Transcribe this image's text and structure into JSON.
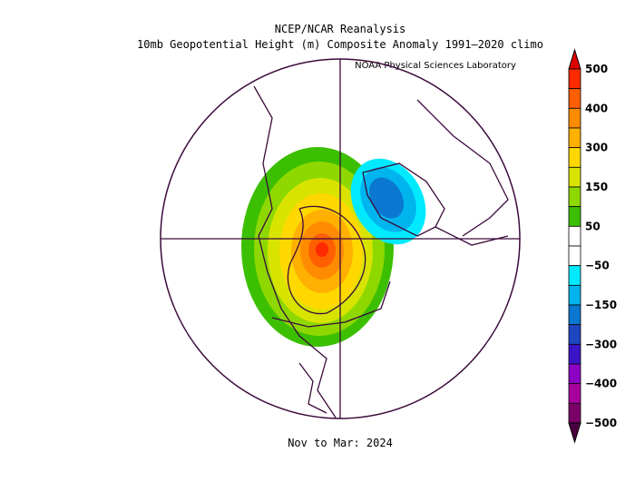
{
  "header": {
    "title": "NCEP/NCAR Reanalysis",
    "subtitle": "10mb Geopotential Height (m) Composite Anomaly 1991–2020 climo",
    "credit": "NOAA Physical Sciences Laboratory"
  },
  "footer": {
    "period": "Nov to Mar: 2024"
  },
  "colorbar": {
    "labels": [
      "500",
      "400",
      "300",
      "150",
      "50",
      "−50",
      "−150",
      "−300",
      "−400",
      "−500"
    ],
    "top_color": "#e00000",
    "bottom_color": "#4a0040",
    "colors": [
      "#ff2a00",
      "#ff5f00",
      "#ff8c00",
      "#ffb000",
      "#ffd800",
      "#d8e400",
      "#8ed800",
      "#3cbf00",
      "#ffffff",
      "#ffffff",
      "#00eaff",
      "#00b4ee",
      "#0a78d0",
      "#1e46c0",
      "#3c14c8",
      "#8c00c4",
      "#a8009c",
      "#7a0068"
    ]
  }
}
